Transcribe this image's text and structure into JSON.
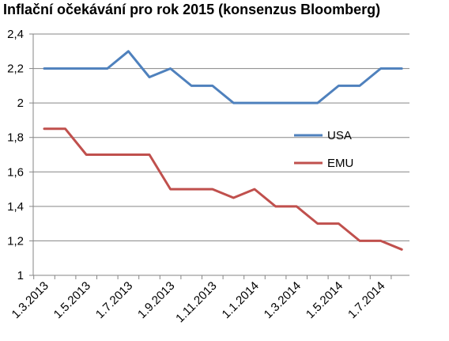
{
  "chart_data": {
    "type": "line",
    "title": "Inflační očekávání pro rok 2015 (konsenzus Bloomberg)",
    "xlabel": "",
    "ylabel": "",
    "ylim": [
      1,
      2.4
    ],
    "yticks": [
      "1",
      "1,2",
      "1,4",
      "1,6",
      "1,8",
      "2",
      "2,2",
      "2,4"
    ],
    "ytick_values": [
      1,
      1.2,
      1.4,
      1.6,
      1.8,
      2,
      2.2,
      2.4
    ],
    "xtick_labels": [
      "1.3.2013",
      "1.5.2013",
      "1.7.2013",
      "1.9.2013",
      "1.11.2013",
      "1.1.2014",
      "1.3.2014",
      "1.5.2014",
      "1.7.2014"
    ],
    "categories": [
      "1.3.2013",
      "1.4.2013",
      "1.5.2013",
      "1.6.2013",
      "1.7.2013",
      "1.8.2013",
      "1.9.2013",
      "1.10.2013",
      "1.11.2013",
      "1.12.2013",
      "1.1.2014",
      "1.2.2014",
      "1.3.2014",
      "1.4.2014",
      "1.5.2014",
      "1.6.2014",
      "1.7.2014",
      "1.8.2014"
    ],
    "grid": "horizontal",
    "legend_position": "center-right",
    "series": [
      {
        "name": "USA",
        "color": "#4F81BD",
        "values": [
          2.2,
          2.2,
          2.2,
          2.2,
          2.3,
          2.15,
          2.2,
          2.1,
          2.1,
          2.0,
          2.0,
          2.0,
          2.0,
          2.0,
          2.1,
          2.1,
          2.2,
          2.2
        ]
      },
      {
        "name": "EMU",
        "color": "#C0504D",
        "values": [
          1.85,
          1.85,
          1.7,
          1.7,
          1.7,
          1.7,
          1.5,
          1.5,
          1.5,
          1.45,
          1.5,
          1.4,
          1.4,
          1.3,
          1.3,
          1.2,
          1.2,
          1.15
        ]
      }
    ]
  }
}
